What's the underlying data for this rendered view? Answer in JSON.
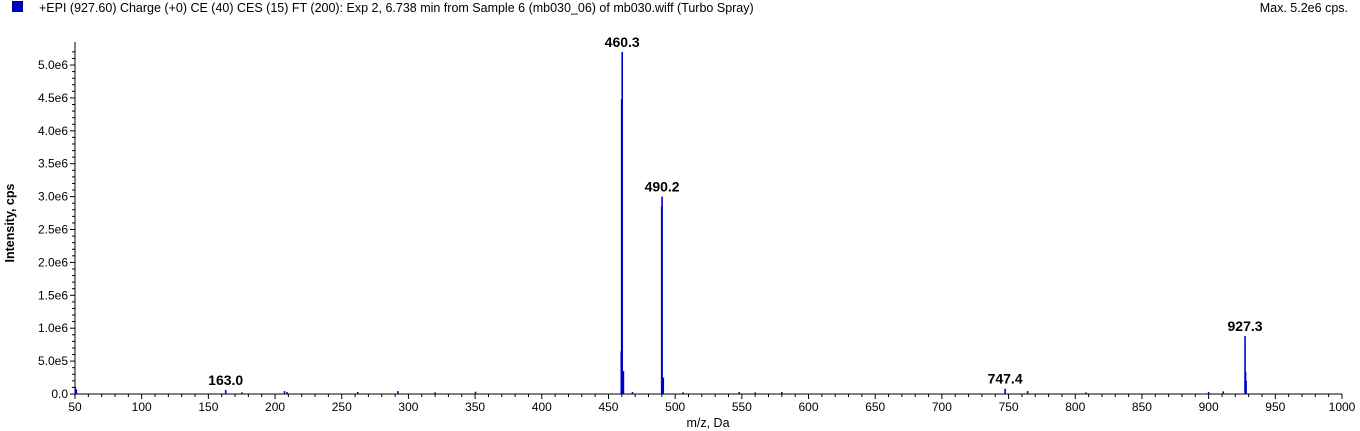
{
  "header": {
    "title": "+EPI (927.60) Charge (+0) CE (40) CES (15) FT (200): Exp 2, 6.738 min from Sample 6 (mb030_06) of mb030.wiff (Turbo Spray)",
    "max_label": "Max. 5.2e6 cps."
  },
  "colors": {
    "series": "#0000cc",
    "legend": "#0000cc"
  },
  "chart_data": {
    "type": "bar",
    "title": "+EPI (927.60) Charge (+0) CE (40) CES (15) FT (200): Exp 2, 6.738 min from Sample 6 (mb030_06) of mb030.wiff (Turbo Spray)",
    "xlabel": "m/z, Da",
    "ylabel": "Intensity, cps",
    "xlim": [
      50,
      1000
    ],
    "ylim": [
      0,
      5350000.0
    ],
    "x_ticks": [
      50,
      100,
      150,
      200,
      250,
      300,
      350,
      400,
      450,
      500,
      550,
      600,
      650,
      700,
      750,
      800,
      850,
      900,
      950,
      1000
    ],
    "x_tick_labels": [
      "50",
      "100",
      "150",
      "200",
      "250",
      "300",
      "350",
      "400",
      "450",
      "500",
      "550",
      "600",
      "650",
      "700",
      "750",
      "800",
      "850",
      "900",
      "950",
      "1000"
    ],
    "y_ticks": [
      0,
      500000,
      1000000,
      1500000,
      2000000,
      2500000,
      3000000,
      3500000,
      4000000,
      4500000,
      5000000
    ],
    "y_tick_labels": [
      "0.0",
      "5.0e5",
      "1.0e6",
      "1.5e6",
      "2.0e6",
      "2.5e6",
      "3.0e6",
      "3.5e6",
      "4.0e6",
      "4.5e6",
      "5.0e6"
    ],
    "peaks": [
      {
        "mz": 50.2,
        "intensity": 110000
      },
      {
        "mz": 51.0,
        "intensity": 70000
      },
      {
        "mz": 163.0,
        "intensity": 60000,
        "label": "163.0"
      },
      {
        "mz": 175.2,
        "intensity": 25000
      },
      {
        "mz": 207.1,
        "intensity": 45000
      },
      {
        "mz": 209.0,
        "intensity": 30000
      },
      {
        "mz": 262.0,
        "intensity": 30000
      },
      {
        "mz": 292.1,
        "intensity": 45000
      },
      {
        "mz": 320.0,
        "intensity": 25000
      },
      {
        "mz": 350.3,
        "intensity": 35000
      },
      {
        "mz": 459.6,
        "intensity": 650000
      },
      {
        "mz": 459.9,
        "intensity": 4480000
      },
      {
        "mz": 460.3,
        "intensity": 5200000,
        "label": "460.3"
      },
      {
        "mz": 461.2,
        "intensity": 350000
      },
      {
        "mz": 468.0,
        "intensity": 30000
      },
      {
        "mz": 489.9,
        "intensity": 2850000
      },
      {
        "mz": 490.2,
        "intensity": 3000000,
        "label": "490.2"
      },
      {
        "mz": 491.1,
        "intensity": 250000
      },
      {
        "mz": 506.0,
        "intensity": 25000
      },
      {
        "mz": 548.0,
        "intensity": 30000
      },
      {
        "mz": 560.0,
        "intensity": 25000
      },
      {
        "mz": 580.0,
        "intensity": 30000
      },
      {
        "mz": 747.4,
        "intensity": 80000,
        "label": "747.4"
      },
      {
        "mz": 764.3,
        "intensity": 45000
      },
      {
        "mz": 808.0,
        "intensity": 25000
      },
      {
        "mz": 900.0,
        "intensity": 30000
      },
      {
        "mz": 911.0,
        "intensity": 40000
      },
      {
        "mz": 927.3,
        "intensity": 880000,
        "label": "927.3"
      },
      {
        "mz": 927.7,
        "intensity": 330000
      },
      {
        "mz": 928.1,
        "intensity": 200000
      }
    ],
    "grid": false,
    "legend_position": "top-left"
  }
}
